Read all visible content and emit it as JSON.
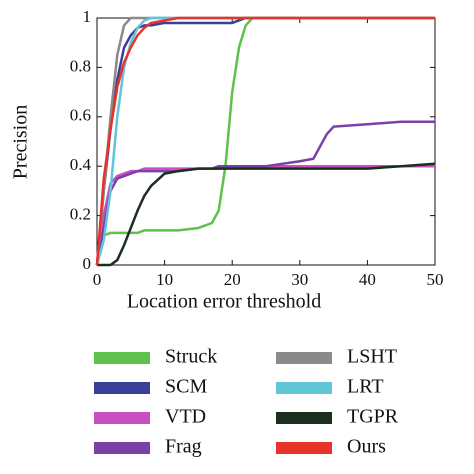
{
  "chart_data": {
    "type": "line",
    "x_label": "Location error threshold",
    "y_label": "Precision",
    "x": [
      0,
      1,
      2,
      3,
      4,
      5,
      6,
      7,
      8,
      10,
      12,
      15,
      17,
      18,
      19,
      20,
      21,
      22,
      23,
      25,
      30,
      32,
      33,
      34,
      35,
      40,
      45,
      50
    ],
    "xlim": [
      0,
      50
    ],
    "xticks": [
      0,
      10,
      20,
      30,
      40,
      50
    ],
    "ylim": [
      0,
      1
    ],
    "yticks": [
      0,
      0.2,
      0.4,
      0.6,
      0.8,
      1
    ],
    "series": [
      {
        "name": "Struck",
        "color": "#5dc24a",
        "values": [
          0,
          0.12,
          0.13,
          0.13,
          0.13,
          0.13,
          0.13,
          0.14,
          0.14,
          0.14,
          0.14,
          0.15,
          0.17,
          0.22,
          0.4,
          0.7,
          0.88,
          0.97,
          1,
          1,
          1,
          1,
          1,
          1,
          1,
          1,
          1,
          1
        ]
      },
      {
        "name": "SCM",
        "color": "#3a3f9a",
        "values": [
          0,
          0.3,
          0.55,
          0.75,
          0.88,
          0.93,
          0.96,
          0.97,
          0.97,
          0.98,
          0.98,
          0.98,
          0.98,
          0.98,
          0.98,
          0.98,
          0.99,
          1,
          1,
          1,
          1,
          1,
          1,
          1,
          1,
          1,
          1,
          1
        ]
      },
      {
        "name": "VTD",
        "color": "#c84fc0",
        "values": [
          0,
          0.2,
          0.33,
          0.36,
          0.37,
          0.38,
          0.38,
          0.39,
          0.39,
          0.39,
          0.39,
          0.39,
          0.39,
          0.39,
          0.4,
          0.4,
          0.4,
          0.4,
          0.4,
          0.4,
          0.4,
          0.4,
          0.4,
          0.4,
          0.4,
          0.4,
          0.4,
          0.4
        ]
      },
      {
        "name": "Frag",
        "color": "#7b3fa8",
        "values": [
          0,
          0.15,
          0.3,
          0.35,
          0.36,
          0.37,
          0.38,
          0.38,
          0.38,
          0.38,
          0.38,
          0.39,
          0.39,
          0.4,
          0.4,
          0.4,
          0.4,
          0.4,
          0.4,
          0.4,
          0.42,
          0.43,
          0.48,
          0.53,
          0.56,
          0.57,
          0.58,
          0.58
        ]
      },
      {
        "name": "LSHT",
        "color": "#8a8a8a",
        "values": [
          0,
          0.3,
          0.6,
          0.85,
          0.97,
          1,
          1,
          1,
          1,
          1,
          1,
          1,
          1,
          1,
          1,
          1,
          1,
          1,
          1,
          1,
          1,
          1,
          1,
          1,
          1,
          1,
          1,
          1
        ]
      },
      {
        "name": "LRT",
        "color": "#5ec6d6",
        "values": [
          0,
          0.1,
          0.3,
          0.6,
          0.8,
          0.9,
          0.96,
          0.99,
          1,
          1,
          1,
          1,
          1,
          1,
          1,
          1,
          1,
          1,
          1,
          1,
          1,
          1,
          1,
          1,
          1,
          1,
          1,
          1
        ]
      },
      {
        "name": "TGPR",
        "color": "#1c2e1e",
        "values": [
          0,
          0,
          0,
          0.02,
          0.08,
          0.15,
          0.22,
          0.28,
          0.32,
          0.37,
          0.38,
          0.39,
          0.39,
          0.39,
          0.39,
          0.39,
          0.39,
          0.39,
          0.39,
          0.39,
          0.39,
          0.39,
          0.39,
          0.39,
          0.39,
          0.39,
          0.4,
          0.41
        ]
      },
      {
        "name": "Ours",
        "color": "#e8332a",
        "values": [
          0,
          0.35,
          0.55,
          0.72,
          0.82,
          0.88,
          0.93,
          0.96,
          0.98,
          0.99,
          1,
          1,
          1,
          1,
          1,
          1,
          1,
          1,
          1,
          1,
          1,
          1,
          1,
          1,
          1,
          1,
          1,
          1
        ]
      }
    ]
  }
}
